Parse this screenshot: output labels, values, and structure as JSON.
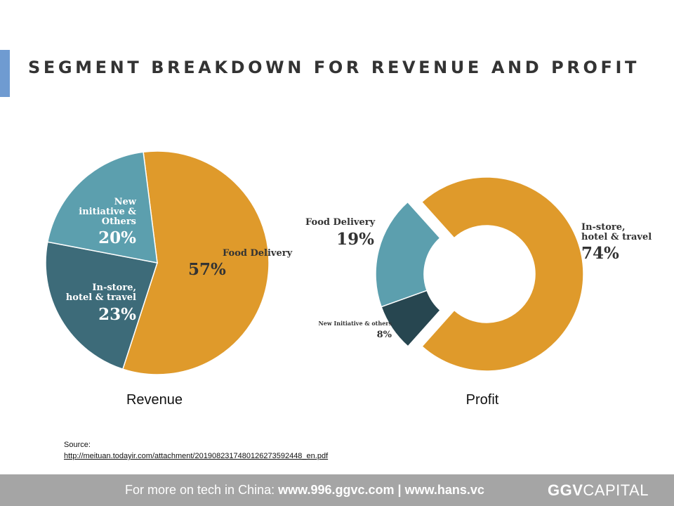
{
  "title": "SEGMENT BREAKDOWN FOR REVENUE AND PROFIT",
  "colors": {
    "food_delivery": "#df9a2b",
    "in_store": "#3d6b79",
    "new_initiative": "#5c9fae",
    "new_initiative_profit": "#274650",
    "accent": "#6f9bd1"
  },
  "chart_data": [
    {
      "type": "pie",
      "title": "Revenue",
      "slices": [
        {
          "label": "Food Delivery",
          "value": 57,
          "display": "57%",
          "color": "#df9a2b"
        },
        {
          "label": "In-store, hotel & travel",
          "value": 23,
          "display": "23%",
          "color": "#3d6b79"
        },
        {
          "label": "New initiative & Others",
          "value": 20,
          "display": "20%",
          "color": "#5c9fae"
        }
      ]
    },
    {
      "type": "pie",
      "subtype": "donut",
      "title": "Profit",
      "slices": [
        {
          "label": "In-store, hotel & travel",
          "value": 74,
          "display": "74%",
          "color": "#df9a2b"
        },
        {
          "label": "New Initiative & others",
          "value": 8,
          "display": "8%",
          "color": "#274650"
        },
        {
          "label": "Food Delivery",
          "value": 19,
          "display": "19%",
          "color": "#5c9fae"
        }
      ]
    }
  ],
  "labels": {
    "revenue": {
      "food_delivery": "Food Delivery",
      "in_store": [
        "In-store,",
        "hotel & travel"
      ],
      "new_initiative": [
        "New",
        "initiative &",
        "Others"
      ]
    },
    "profit": {
      "food_delivery": "Food Delivery",
      "in_store": [
        "In-store,",
        "hotel & travel"
      ],
      "new_initiative": "New Initiative & others"
    }
  },
  "source": {
    "label": "Source:",
    "url": "http://meituan.todayir.com/attachment/2019082317480126273592448_en.pdf"
  },
  "footer": {
    "prefix": "For more on tech in China: ",
    "link1": "www.996.ggvc.com",
    "separator": " | ",
    "link2": "www.hans.vc",
    "brand_bold": "GGV",
    "brand_regular": "CAPITAL"
  }
}
